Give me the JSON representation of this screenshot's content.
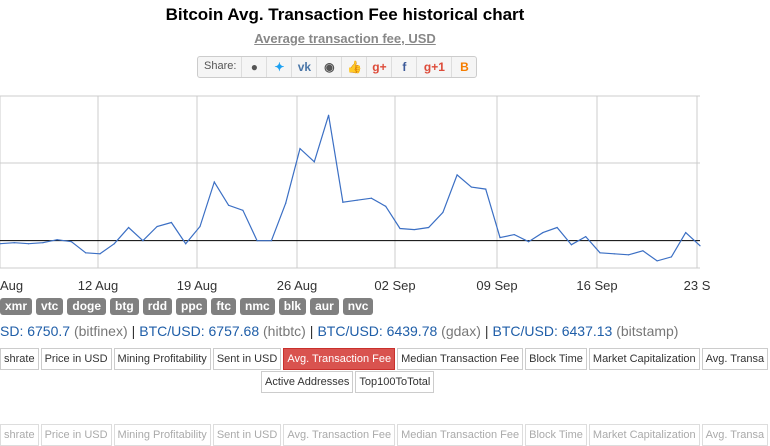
{
  "page": {
    "title": "Bitcoin Avg. Transaction Fee historical chart",
    "subtitle": "Average transaction fee, USD"
  },
  "share": {
    "label": "Share:",
    "buttons": [
      {
        "name": "reddit-icon",
        "glyph": "●",
        "color": "#555555"
      },
      {
        "name": "twitter-icon",
        "glyph": "✦",
        "color": "#1da1f2"
      },
      {
        "name": "vk-icon",
        "glyph": "vk",
        "color": "#4a76a8"
      },
      {
        "name": "weibo-icon",
        "glyph": "◉",
        "color": "#555555"
      },
      {
        "name": "like-icon",
        "glyph": "👍",
        "color": "#4a76a8"
      },
      {
        "name": "google-plus-icon",
        "glyph": "g+",
        "color": "#dd4b39"
      },
      {
        "name": "facebook-icon",
        "glyph": "f",
        "color": "#3b5998"
      },
      {
        "name": "google-plus-one-icon",
        "glyph": "g+1",
        "color": "#dd4b39"
      },
      {
        "name": "blogger-icon",
        "glyph": "B",
        "color": "#f57d00"
      }
    ]
  },
  "chart_data": {
    "type": "line",
    "x_tick_labels": [
      "Aug",
      "12 Aug",
      "19 Aug",
      "26 Aug",
      "02 Sep",
      "09 Sep",
      "16 Sep",
      "23 S"
    ],
    "grid": true,
    "line_color": "#3b6fc4",
    "reference_line": {
      "value": 0.92
    },
    "ylim": [
      0.65,
      2.35
    ],
    "series": [
      {
        "values": [
          0.89,
          0.9,
          0.89,
          0.9,
          0.93,
          0.91,
          0.8,
          0.79,
          0.89,
          1.05,
          0.92,
          1.06,
          1.1,
          0.89,
          1.06,
          1.5,
          1.27,
          1.22,
          0.92,
          0.92,
          1.29,
          1.83,
          1.7,
          2.16,
          1.3,
          1.32,
          1.34,
          1.26,
          1.04,
          1.03,
          1.05,
          1.2,
          1.57,
          1.45,
          1.43,
          0.95,
          0.98,
          0.91,
          1.0,
          1.05,
          0.88,
          0.96,
          0.8,
          0.79,
          0.78,
          0.82,
          0.72,
          0.76,
          1.0,
          0.87
        ]
      }
    ]
  },
  "coins": [
    "xmr",
    "vtc",
    "doge",
    "btg",
    "rdd",
    "ppc",
    "ftc",
    "nmc",
    "blk",
    "aur",
    "nvc"
  ],
  "prices": [
    {
      "pair": "SD: 6750.7",
      "exchange": "(bitfinex)"
    },
    {
      "pair": "BTC/USD: 6757.68",
      "exchange": "(hitbtc)"
    },
    {
      "pair": "BTC/USD: 6439.78",
      "exchange": "(gdax)"
    },
    {
      "pair": "BTC/USD: 6437.13",
      "exchange": "(bitstamp)"
    }
  ],
  "tabs": [
    "shrate",
    "Price in USD",
    "Mining Profitability",
    "Sent in USD",
    "Avg. Transaction Fee",
    "Median Transaction Fee",
    "Block Time",
    "Market Capitalization",
    "Avg. Transa"
  ],
  "tabs_row2": [
    "Active Addresses",
    "Top100ToTotal"
  ],
  "active_tab": "Avg. Transaction Fee"
}
